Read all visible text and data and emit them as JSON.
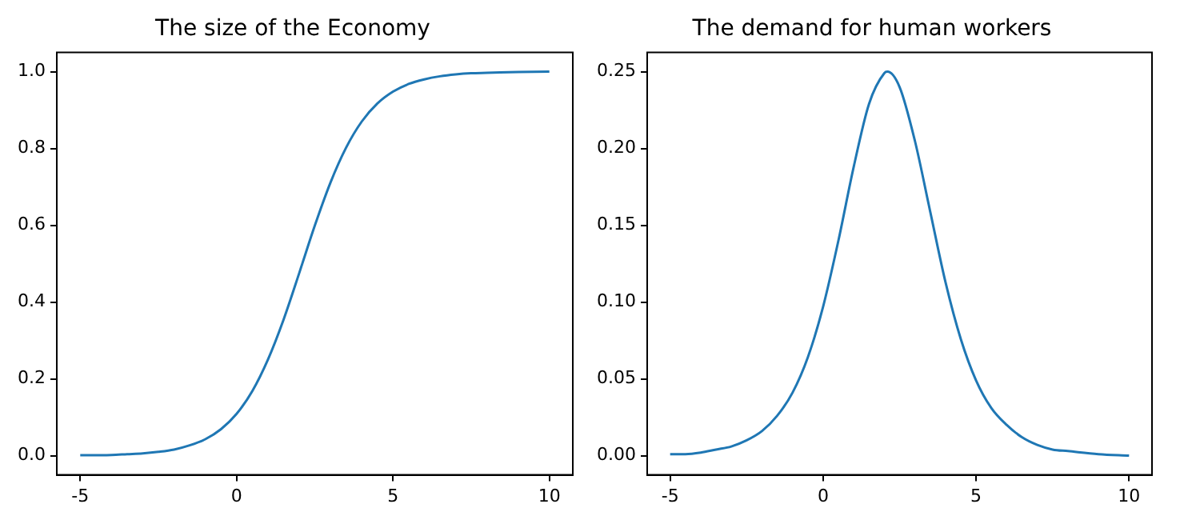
{
  "chart_data": [
    {
      "type": "line",
      "title": "The size of the Economy",
      "x": [
        -5,
        -4.5,
        -4,
        -3.5,
        -3,
        -2.5,
        -2,
        -1.5,
        -1,
        -0.5,
        0,
        0.5,
        1,
        1.5,
        2,
        2.1,
        2.5,
        3,
        3.5,
        4,
        4.5,
        5,
        5.5,
        6,
        6.5,
        7,
        7.5,
        8,
        9,
        10
      ],
      "series": [
        {
          "color": "#1f77b4",
          "values": [
            0.001,
            0.001,
            0.002,
            0.004,
            0.006,
            0.01,
            0.016,
            0.027,
            0.043,
            0.069,
            0.109,
            0.168,
            0.25,
            0.354,
            0.475,
            0.5,
            0.599,
            0.711,
            0.802,
            0.87,
            0.917,
            0.948,
            0.968,
            0.98,
            0.988,
            0.993,
            0.996,
            0.997,
            0.999,
            1.0
          ]
        }
      ],
      "xlim": [
        -5.75,
        10.75
      ],
      "xticks": [
        -5,
        0,
        5,
        10
      ],
      "ylim": [
        -0.05,
        1.05
      ],
      "yticks": [
        {
          "value": 0,
          "label": "0.0"
        },
        {
          "value": 0.2,
          "label": "0.2"
        },
        {
          "value": 0.4,
          "label": "0.4"
        },
        {
          "value": 0.6,
          "label": "0.6"
        },
        {
          "value": 0.8,
          "label": "0.8"
        },
        {
          "value": 1,
          "label": "1.0"
        }
      ],
      "grid": false,
      "legend": false,
      "marker": "none",
      "line_style": "solid"
    },
    {
      "type": "line",
      "title": "The demand for human workers",
      "x": [
        -5,
        -4.5,
        -4,
        -3.5,
        -3,
        -2.5,
        -2,
        -1.5,
        -1,
        -0.5,
        0,
        0.5,
        1,
        1.5,
        2,
        2.1,
        2.5,
        3,
        3.5,
        4,
        4.5,
        5,
        5.5,
        6,
        6.5,
        7,
        7.5,
        8,
        9,
        10
      ],
      "series": [
        {
          "color": "#1f77b4",
          "values": [
            0.001,
            0.001,
            0.002,
            0.004,
            0.006,
            0.01,
            0.016,
            0.026,
            0.041,
            0.064,
            0.097,
            0.14,
            0.188,
            0.229,
            0.249,
            0.25,
            0.24,
            0.205,
            0.159,
            0.113,
            0.076,
            0.049,
            0.031,
            0.02,
            0.012,
            0.007,
            0.004,
            0.003,
            0.001,
            0.0
          ]
        }
      ],
      "xlim": [
        -5.75,
        10.75
      ],
      "xticks": [
        -5,
        0,
        5,
        10
      ],
      "ylim": [
        -0.0125,
        0.2625
      ],
      "yticks": [
        {
          "value": 0,
          "label": "0.00"
        },
        {
          "value": 0.05,
          "label": "0.05"
        },
        {
          "value": 0.1,
          "label": "0.10"
        },
        {
          "value": 0.15,
          "label": "0.15"
        },
        {
          "value": 0.2,
          "label": "0.20"
        },
        {
          "value": 0.25,
          "label": "0.25"
        }
      ],
      "grid": false,
      "legend": false,
      "marker": "none",
      "line_style": "solid"
    }
  ]
}
